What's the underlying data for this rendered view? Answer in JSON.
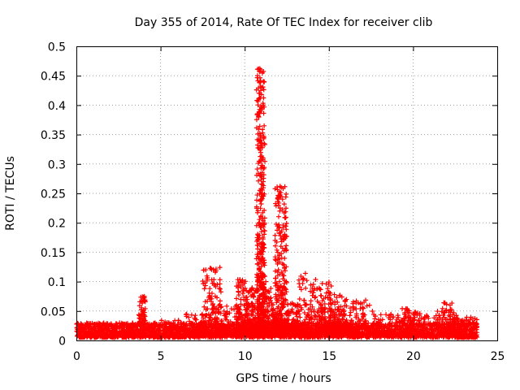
{
  "chart_data": {
    "type": "scatter",
    "title": "Day 355 of 2014, Rate Of TEC Index for receiver clib",
    "xlabel": "GPS time / hours",
    "ylabel": "ROTI / TECUs",
    "xlim": [
      0,
      25
    ],
    "ylim": [
      0,
      0.5
    ],
    "grid": true,
    "marker": "+",
    "color": "#ff0000",
    "x_ticks": [
      0,
      5,
      10,
      15,
      20,
      25
    ],
    "x_tick_labels": [
      "0",
      "5",
      "10",
      "15",
      "20",
      "25"
    ],
    "y_ticks": [
      0,
      0.05,
      0.1,
      0.15,
      0.2,
      0.25,
      0.3,
      0.35,
      0.4,
      0.45,
      0.5
    ],
    "y_tick_labels": [
      "0",
      "0.05",
      "0.1",
      "0.15",
      "0.2",
      "0.25",
      "0.3",
      "0.35",
      "0.4",
      "0.45",
      "0.5"
    ],
    "series": [
      {
        "name": "ROTI",
        "description": "Dense band of points 0.005-0.03 TECU/s across 0-23.8 h with enhanced clusters",
        "background_band": {
          "x_range": [
            0,
            23.8
          ],
          "y_range": [
            0.005,
            0.03
          ]
        },
        "peaks": [
          {
            "x": [
              0,
              3.6
            ],
            "y": [
              0.005,
              0.03
            ]
          },
          {
            "x": [
              3.7,
              4.1
            ],
            "y": [
              0.01,
              0.075
            ]
          },
          {
            "x": [
              4.2,
              6.5
            ],
            "y": [
              0.005,
              0.035
            ]
          },
          {
            "x": [
              6.5,
              7.6
            ],
            "y": [
              0.008,
              0.045
            ]
          },
          {
            "x": [
              7.5,
              8.6
            ],
            "y": [
              0.01,
              0.125
            ]
          },
          {
            "x": [
              8.6,
              9.8
            ],
            "y": [
              0.01,
              0.06
            ]
          },
          {
            "x": [
              9.5,
              10.1
            ],
            "y": [
              0.01,
              0.105
            ]
          },
          {
            "x": [
              10.1,
              10.7
            ],
            "y": [
              0.01,
              0.09
            ]
          },
          {
            "x": [
              10.7,
              11.2
            ],
            "y": [
              0.01,
              0.462
            ]
          },
          {
            "x": [
              11.2,
              11.8
            ],
            "y": [
              0.01,
              0.09
            ]
          },
          {
            "x": [
              11.8,
              12.5
            ],
            "y": [
              0.01,
              0.262
            ]
          },
          {
            "x": [
              12.5,
              13.2
            ],
            "y": [
              0.01,
              0.065
            ]
          },
          {
            "x": [
              13.2,
              14.5
            ],
            "y": [
              0.01,
              0.115
            ]
          },
          {
            "x": [
              14.5,
              15.2
            ],
            "y": [
              0.01,
              0.1
            ]
          },
          {
            "x": [
              15.2,
              16.0
            ],
            "y": [
              0.01,
              0.08
            ]
          },
          {
            "x": [
              16.0,
              17.6
            ],
            "y": [
              0.01,
              0.07
            ]
          },
          {
            "x": [
              17.6,
              19.3
            ],
            "y": [
              0.008,
              0.045
            ]
          },
          {
            "x": [
              19.3,
              20.0
            ],
            "y": [
              0.008,
              0.055
            ]
          },
          {
            "x": [
              20.0,
              21.7
            ],
            "y": [
              0.008,
              0.05
            ]
          },
          {
            "x": [
              21.7,
              22.6
            ],
            "y": [
              0.01,
              0.065
            ]
          },
          {
            "x": [
              22.6,
              23.8
            ],
            "y": [
              0.005,
              0.04
            ]
          }
        ],
        "outliers": [
          [
            10.9,
            0.462
          ],
          [
            10.95,
            0.46
          ],
          [
            10.95,
            0.425
          ],
          [
            11.0,
            0.418
          ],
          [
            10.9,
            0.352
          ],
          [
            10.92,
            0.348
          ],
          [
            10.95,
            0.335
          ],
          [
            10.9,
            0.305
          ],
          [
            10.93,
            0.283
          ],
          [
            10.9,
            0.255
          ],
          [
            10.95,
            0.24
          ],
          [
            10.98,
            0.232
          ],
          [
            10.95,
            0.21
          ],
          [
            10.93,
            0.195
          ],
          [
            11.0,
            0.185
          ],
          [
            10.97,
            0.165
          ],
          [
            11.05,
            0.162
          ],
          [
            11.08,
            0.158
          ],
          [
            10.92,
            0.148
          ],
          [
            11.0,
            0.14
          ],
          [
            10.85,
            0.14
          ],
          [
            11.1,
            0.13
          ],
          [
            12.1,
            0.262
          ],
          [
            12.05,
            0.253
          ],
          [
            12.0,
            0.24
          ],
          [
            12.1,
            0.225
          ],
          [
            12.08,
            0.22
          ],
          [
            12.05,
            0.182
          ],
          [
            12.12,
            0.178
          ],
          [
            12.15,
            0.16
          ],
          [
            12.2,
            0.14
          ],
          [
            12.25,
            0.13
          ],
          [
            12.0,
            0.12
          ],
          [
            12.3,
            0.11
          ],
          [
            10.85,
            0.12
          ],
          [
            11.15,
            0.11
          ],
          [
            11.25,
            0.1
          ]
        ]
      }
    ]
  }
}
